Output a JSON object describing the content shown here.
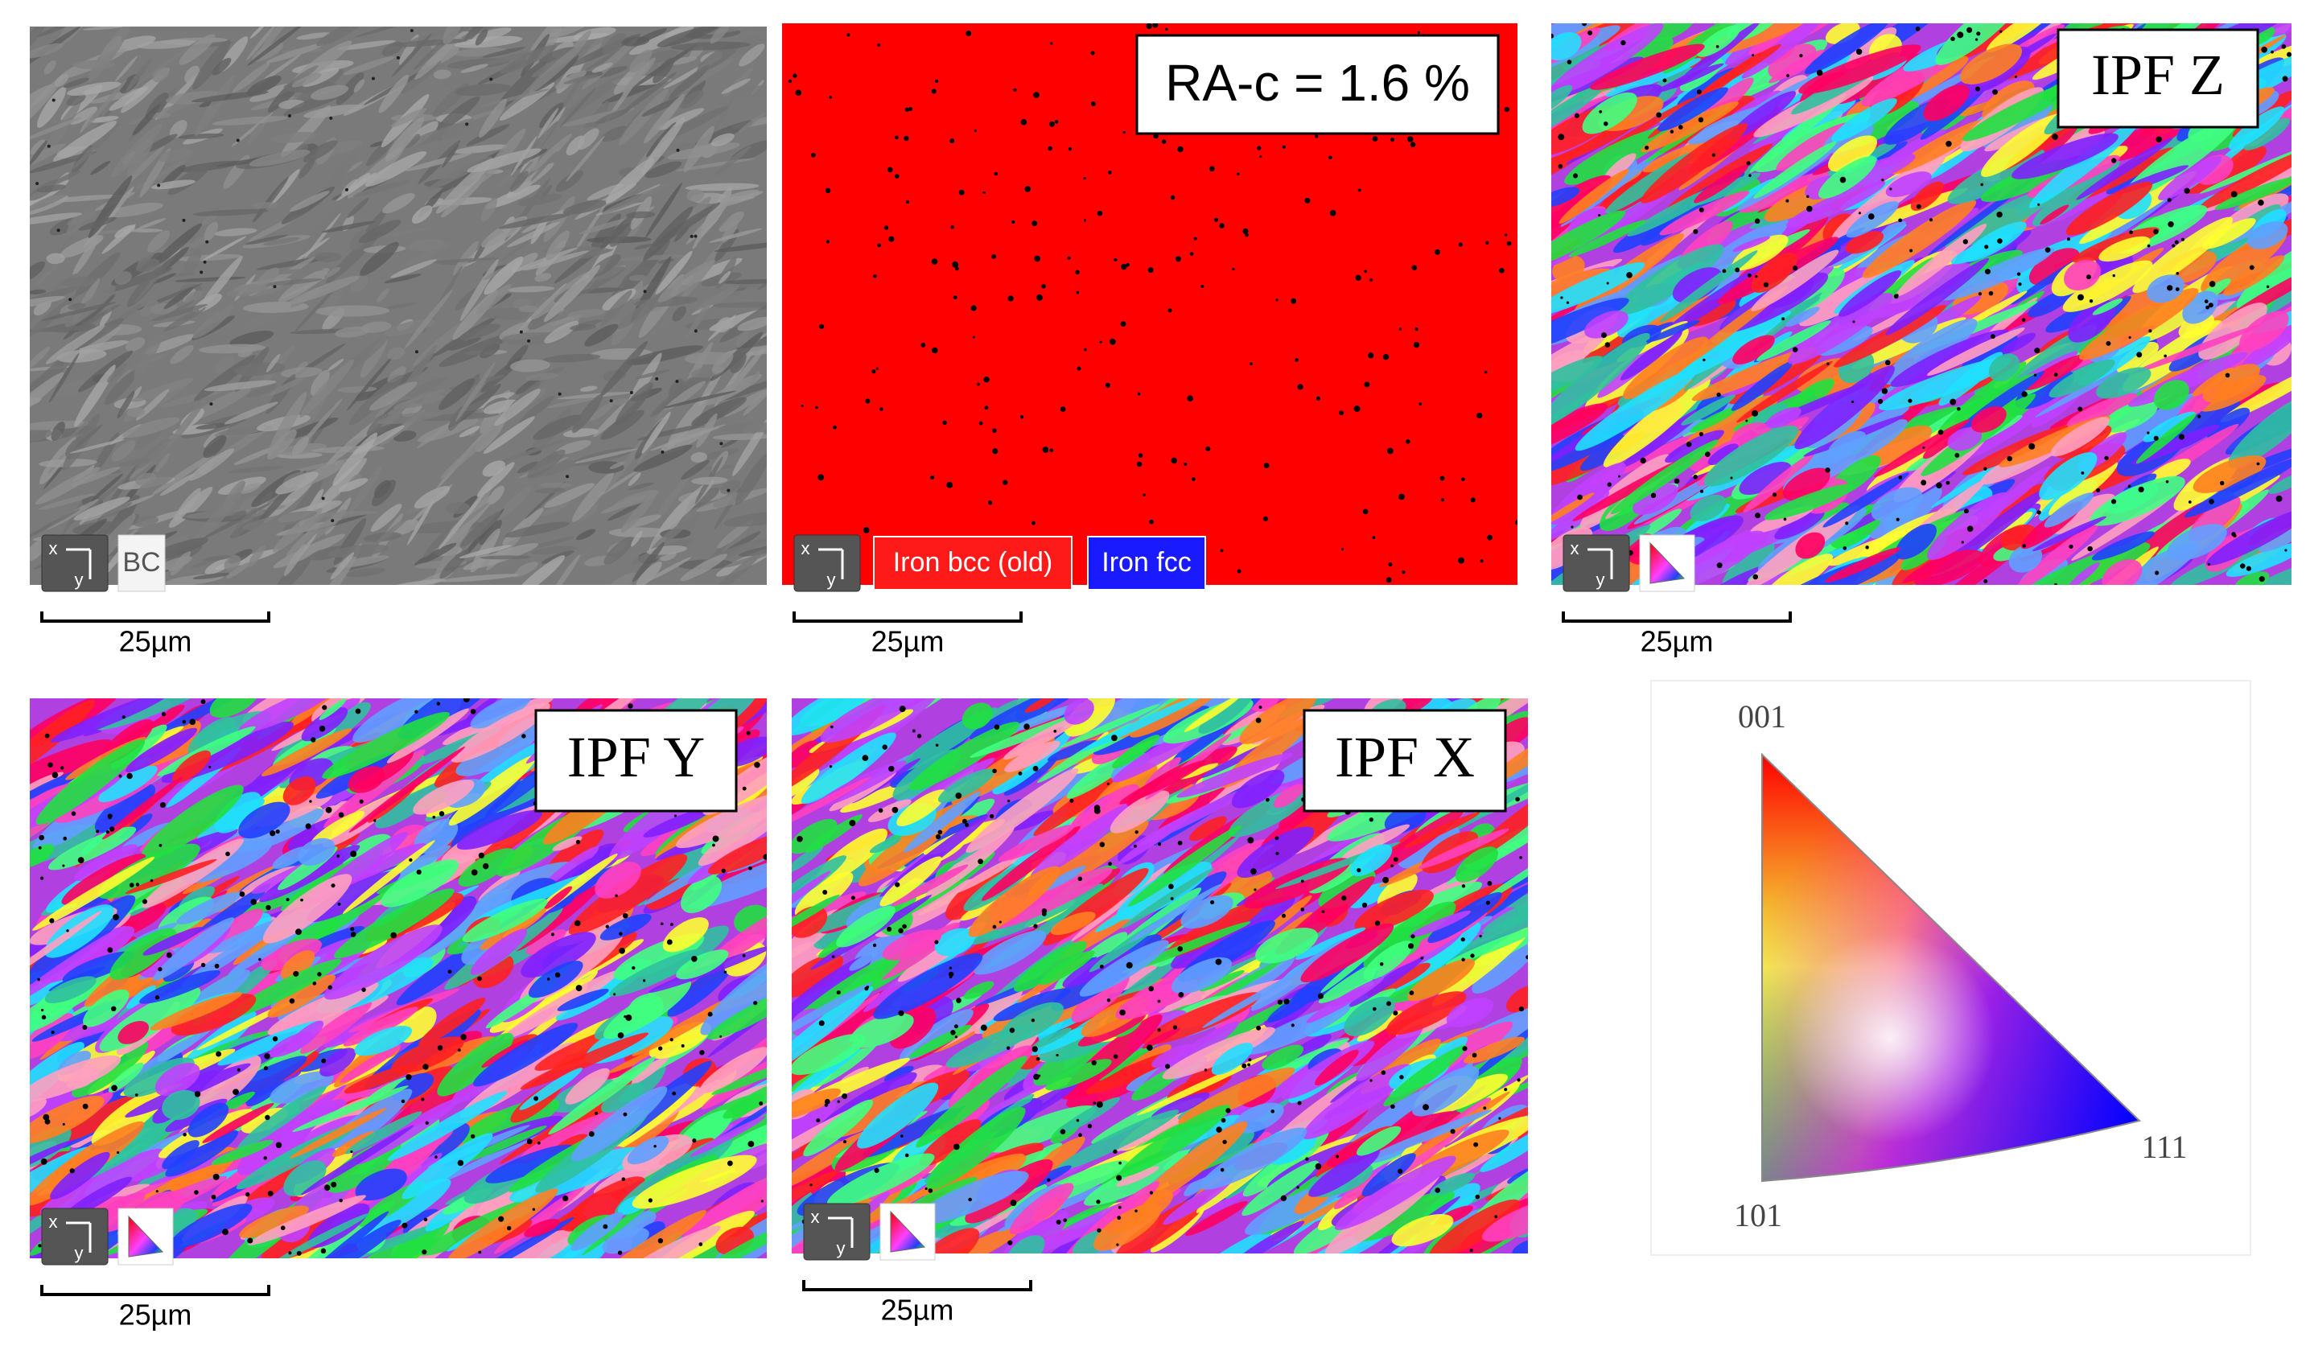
{
  "panels": [
    {
      "legend": [
        "BC"
      ],
      "scale_bar": "25µm",
      "axes": [
        "x",
        "y"
      ]
    },
    {
      "title": "RA-c = 1.6 %",
      "legend": [
        "Iron bcc (old)",
        "Iron fcc"
      ],
      "scale_bar": "25µm",
      "axes": [
        "x",
        "y"
      ]
    },
    {
      "title": "IPF Z",
      "scale_bar": "25µm",
      "axes": [
        "x",
        "y"
      ]
    },
    {
      "title": "IPF Y",
      "scale_bar": "25µm",
      "axes": [
        "x",
        "y"
      ]
    },
    {
      "title": "IPF X",
      "scale_bar": "25µm",
      "axes": [
        "x",
        "y"
      ]
    }
  ],
  "ipf_key": {
    "corners": [
      "001",
      "101",
      "111"
    ]
  }
}
